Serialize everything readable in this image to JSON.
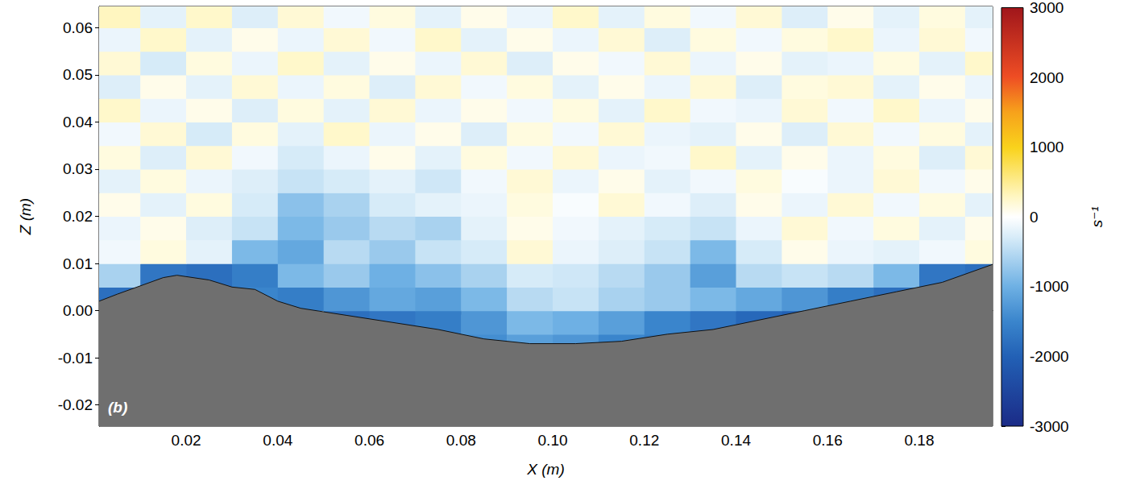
{
  "chart_data": {
    "type": "heatmap",
    "x_label": "X (m)",
    "y_label": "Z (m)",
    "panel_label": "(b)",
    "xlim": [
      0.001,
      0.196
    ],
    "ylim": [
      -0.0245,
      0.0645
    ],
    "xticks": [
      0.02,
      0.04,
      0.06,
      0.08,
      {
        "value": 0.1,
        "label": "0.10"
      },
      0.12,
      0.14,
      0.16,
      0.18
    ],
    "yticks": [
      -0.02,
      -0.01,
      {
        "value": 0,
        "label": "0.00"
      },
      0.01,
      0.02,
      0.03,
      0.04,
      0.05,
      0.06
    ],
    "grid": false,
    "cells": {
      "x": [
        0.005,
        0.015,
        0.025,
        0.035,
        0.045,
        0.055,
        0.065,
        0.075,
        0.085,
        0.095,
        0.105,
        0.115,
        0.125,
        0.135,
        0.145,
        0.155,
        0.165,
        0.175,
        0.185,
        0.195
      ],
      "z": [
        -0.0075,
        -0.0025,
        0.0025,
        0.0075,
        0.0125,
        0.0175,
        0.0225,
        0.0275,
        0.0325,
        0.0375,
        0.0425,
        0.0475,
        0.0525,
        0.0575,
        0.0625
      ],
      "values": [
        [
          null,
          null,
          null,
          null,
          null,
          null,
          null,
          null,
          -1400,
          -1200,
          -1300,
          -1500,
          -1600,
          null,
          null,
          null,
          null,
          null,
          null,
          null
        ],
        [
          null,
          null,
          null,
          null,
          null,
          -1800,
          -1700,
          -1600,
          -1300,
          -900,
          -1000,
          -1200,
          -1500,
          -1700,
          -1900,
          -2000,
          null,
          null,
          null,
          null
        ],
        [
          -1800,
          null,
          null,
          -1500,
          -1600,
          -1300,
          -1100,
          -1200,
          -900,
          -500,
          -400,
          -600,
          -700,
          -900,
          -1100,
          -1300,
          -1600,
          -1800,
          null,
          null
        ],
        [
          -600,
          -1700,
          -1800,
          -1600,
          -900,
          -700,
          -1000,
          -800,
          -600,
          -300,
          -350,
          -500,
          -700,
          -1200,
          -500,
          -400,
          -500,
          -900,
          -1700,
          -1800
        ],
        [
          -100,
          150,
          -200,
          -900,
          -1100,
          -500,
          -700,
          -400,
          -300,
          200,
          -150,
          -250,
          -400,
          -900,
          -300,
          100,
          -150,
          -200,
          -100,
          150
        ],
        [
          -150,
          100,
          -250,
          -400,
          -900,
          -700,
          -500,
          -600,
          -200,
          100,
          -100,
          -200,
          -300,
          -400,
          -150,
          200,
          -100,
          150,
          -200,
          100
        ],
        [
          100,
          -200,
          150,
          -300,
          -800,
          -600,
          -300,
          -200,
          -150,
          150,
          -50,
          200,
          -100,
          -250,
          100,
          -150,
          200,
          -100,
          150,
          -200
        ],
        [
          -200,
          150,
          -150,
          -250,
          -400,
          -300,
          -200,
          -350,
          -100,
          200,
          -150,
          100,
          -200,
          -100,
          150,
          -50,
          -150,
          200,
          -100,
          100
        ],
        [
          150,
          -250,
          200,
          -100,
          -300,
          -150,
          100,
          -200,
          150,
          -100,
          200,
          -150,
          -100,
          250,
          -200,
          100,
          -150,
          150,
          -250,
          200
        ],
        [
          -100,
          200,
          -300,
          150,
          -200,
          250,
          -150,
          100,
          -250,
          150,
          -100,
          200,
          -150,
          -200,
          100,
          -250,
          200,
          -100,
          150,
          -200
        ],
        [
          250,
          -150,
          100,
          -250,
          150,
          -200,
          200,
          -150,
          100,
          -100,
          150,
          -200,
          250,
          -100,
          -150,
          200,
          -100,
          250,
          -150,
          100
        ],
        [
          -250,
          100,
          -200,
          200,
          -150,
          150,
          -250,
          200,
          -100,
          150,
          -200,
          100,
          -150,
          200,
          -250,
          150,
          200,
          -200,
          100,
          -150
        ],
        [
          200,
          -300,
          150,
          -150,
          250,
          -200,
          100,
          -150,
          200,
          -250,
          100,
          -100,
          200,
          -150,
          100,
          -200,
          -150,
          150,
          -200,
          250
        ],
        [
          -150,
          250,
          -200,
          100,
          -150,
          200,
          -100,
          250,
          -200,
          100,
          -150,
          200,
          -250,
          150,
          -100,
          150,
          250,
          -150,
          200,
          -100
        ],
        [
          300,
          -200,
          250,
          -250,
          200,
          -100,
          150,
          -200,
          100,
          -150,
          250,
          -200,
          150,
          -100,
          200,
          -250,
          100,
          -200,
          150,
          -200
        ]
      ]
    },
    "colorbar": {
      "range": [
        -3000,
        3000
      ],
      "ticks": [
        -3000,
        -2000,
        -1000,
        0,
        1000,
        2000,
        3000
      ],
      "label": "s⁻¹"
    },
    "bed": {
      "x": [
        0.001,
        0.005,
        0.015,
        0.018,
        0.025,
        0.03,
        0.035,
        0.04,
        0.045,
        0.055,
        0.065,
        0.075,
        0.085,
        0.095,
        0.105,
        0.115,
        0.125,
        0.135,
        0.145,
        0.155,
        0.165,
        0.175,
        0.185,
        0.196
      ],
      "z": [
        0.002,
        0.0035,
        0.007,
        0.0075,
        0.0065,
        0.005,
        0.0045,
        0.002,
        0.0005,
        -0.001,
        -0.0025,
        -0.004,
        -0.006,
        -0.007,
        -0.007,
        -0.0065,
        -0.005,
        -0.004,
        -0.002,
        0.0,
        0.002,
        0.004,
        0.006,
        0.0098
      ]
    }
  }
}
